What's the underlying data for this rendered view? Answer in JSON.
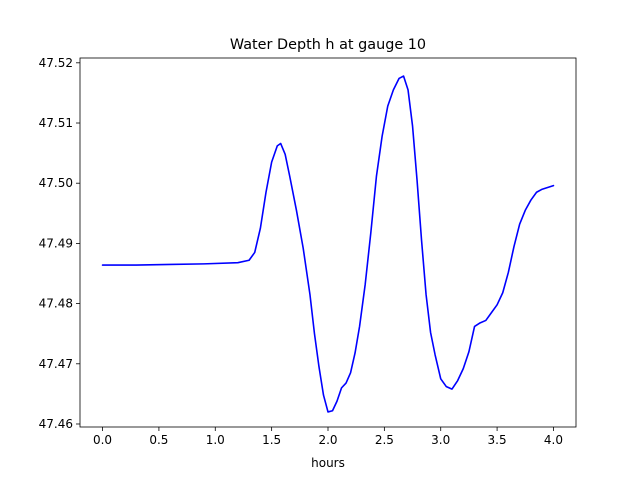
{
  "chart_data": {
    "type": "line",
    "title": "Water Depth h at gauge 10",
    "xlabel": "hours",
    "ylabel": "",
    "xlim": [
      -0.2,
      4.2
    ],
    "ylim": [
      47.4595,
      47.5208
    ],
    "xticks": [
      0.0,
      0.5,
      1.0,
      1.5,
      2.0,
      2.5,
      3.0,
      3.5,
      4.0
    ],
    "xtick_labels": [
      "0.0",
      "0.5",
      "1.0",
      "1.5",
      "2.0",
      "2.5",
      "3.0",
      "3.5",
      "4.0"
    ],
    "yticks": [
      47.46,
      47.47,
      47.48,
      47.49,
      47.5,
      47.51,
      47.52
    ],
    "ytick_labels": [
      "47.46",
      "47.47",
      "47.48",
      "47.49",
      "47.50",
      "47.51",
      "47.52"
    ],
    "grid": false,
    "series": [
      {
        "color": "#0000ff",
        "x": [
          0.0,
          0.3,
          0.6,
          0.9,
          1.2,
          1.3,
          1.35,
          1.4,
          1.45,
          1.5,
          1.55,
          1.58,
          1.62,
          1.66,
          1.72,
          1.78,
          1.84,
          1.88,
          1.92,
          1.96,
          2.0,
          2.04,
          2.08,
          2.12,
          2.16,
          2.2,
          2.24,
          2.28,
          2.33,
          2.38,
          2.43,
          2.48,
          2.53,
          2.58,
          2.63,
          2.67,
          2.71,
          2.75,
          2.79,
          2.83,
          2.87,
          2.91,
          2.95,
          3.0,
          3.05,
          3.1,
          3.15,
          3.2,
          3.25,
          3.3,
          3.35,
          3.4,
          3.45,
          3.5,
          3.55,
          3.6,
          3.65,
          3.7,
          3.75,
          3.8,
          3.85,
          3.9,
          4.0
        ],
        "y": [
          47.4864,
          47.4864,
          47.4865,
          47.4866,
          47.4868,
          47.4872,
          47.4885,
          47.4925,
          47.4985,
          47.5035,
          47.5062,
          47.5066,
          47.5048,
          47.5012,
          47.4955,
          47.4892,
          47.4815,
          47.475,
          47.4695,
          47.4648,
          47.462,
          47.4622,
          47.4638,
          47.466,
          47.4668,
          47.4685,
          47.4718,
          47.4762,
          47.4832,
          47.4918,
          47.5012,
          47.5078,
          47.5128,
          47.5155,
          47.5174,
          47.5178,
          47.5155,
          47.5095,
          47.5005,
          47.4905,
          47.4815,
          47.4752,
          47.4715,
          47.4675,
          47.4662,
          47.4658,
          47.4672,
          47.4692,
          47.472,
          47.4762,
          47.4768,
          47.4772,
          47.4785,
          47.4798,
          47.4818,
          47.4852,
          47.4895,
          47.4932,
          47.4955,
          47.4972,
          47.4985,
          47.499,
          47.4996
        ]
      }
    ]
  }
}
